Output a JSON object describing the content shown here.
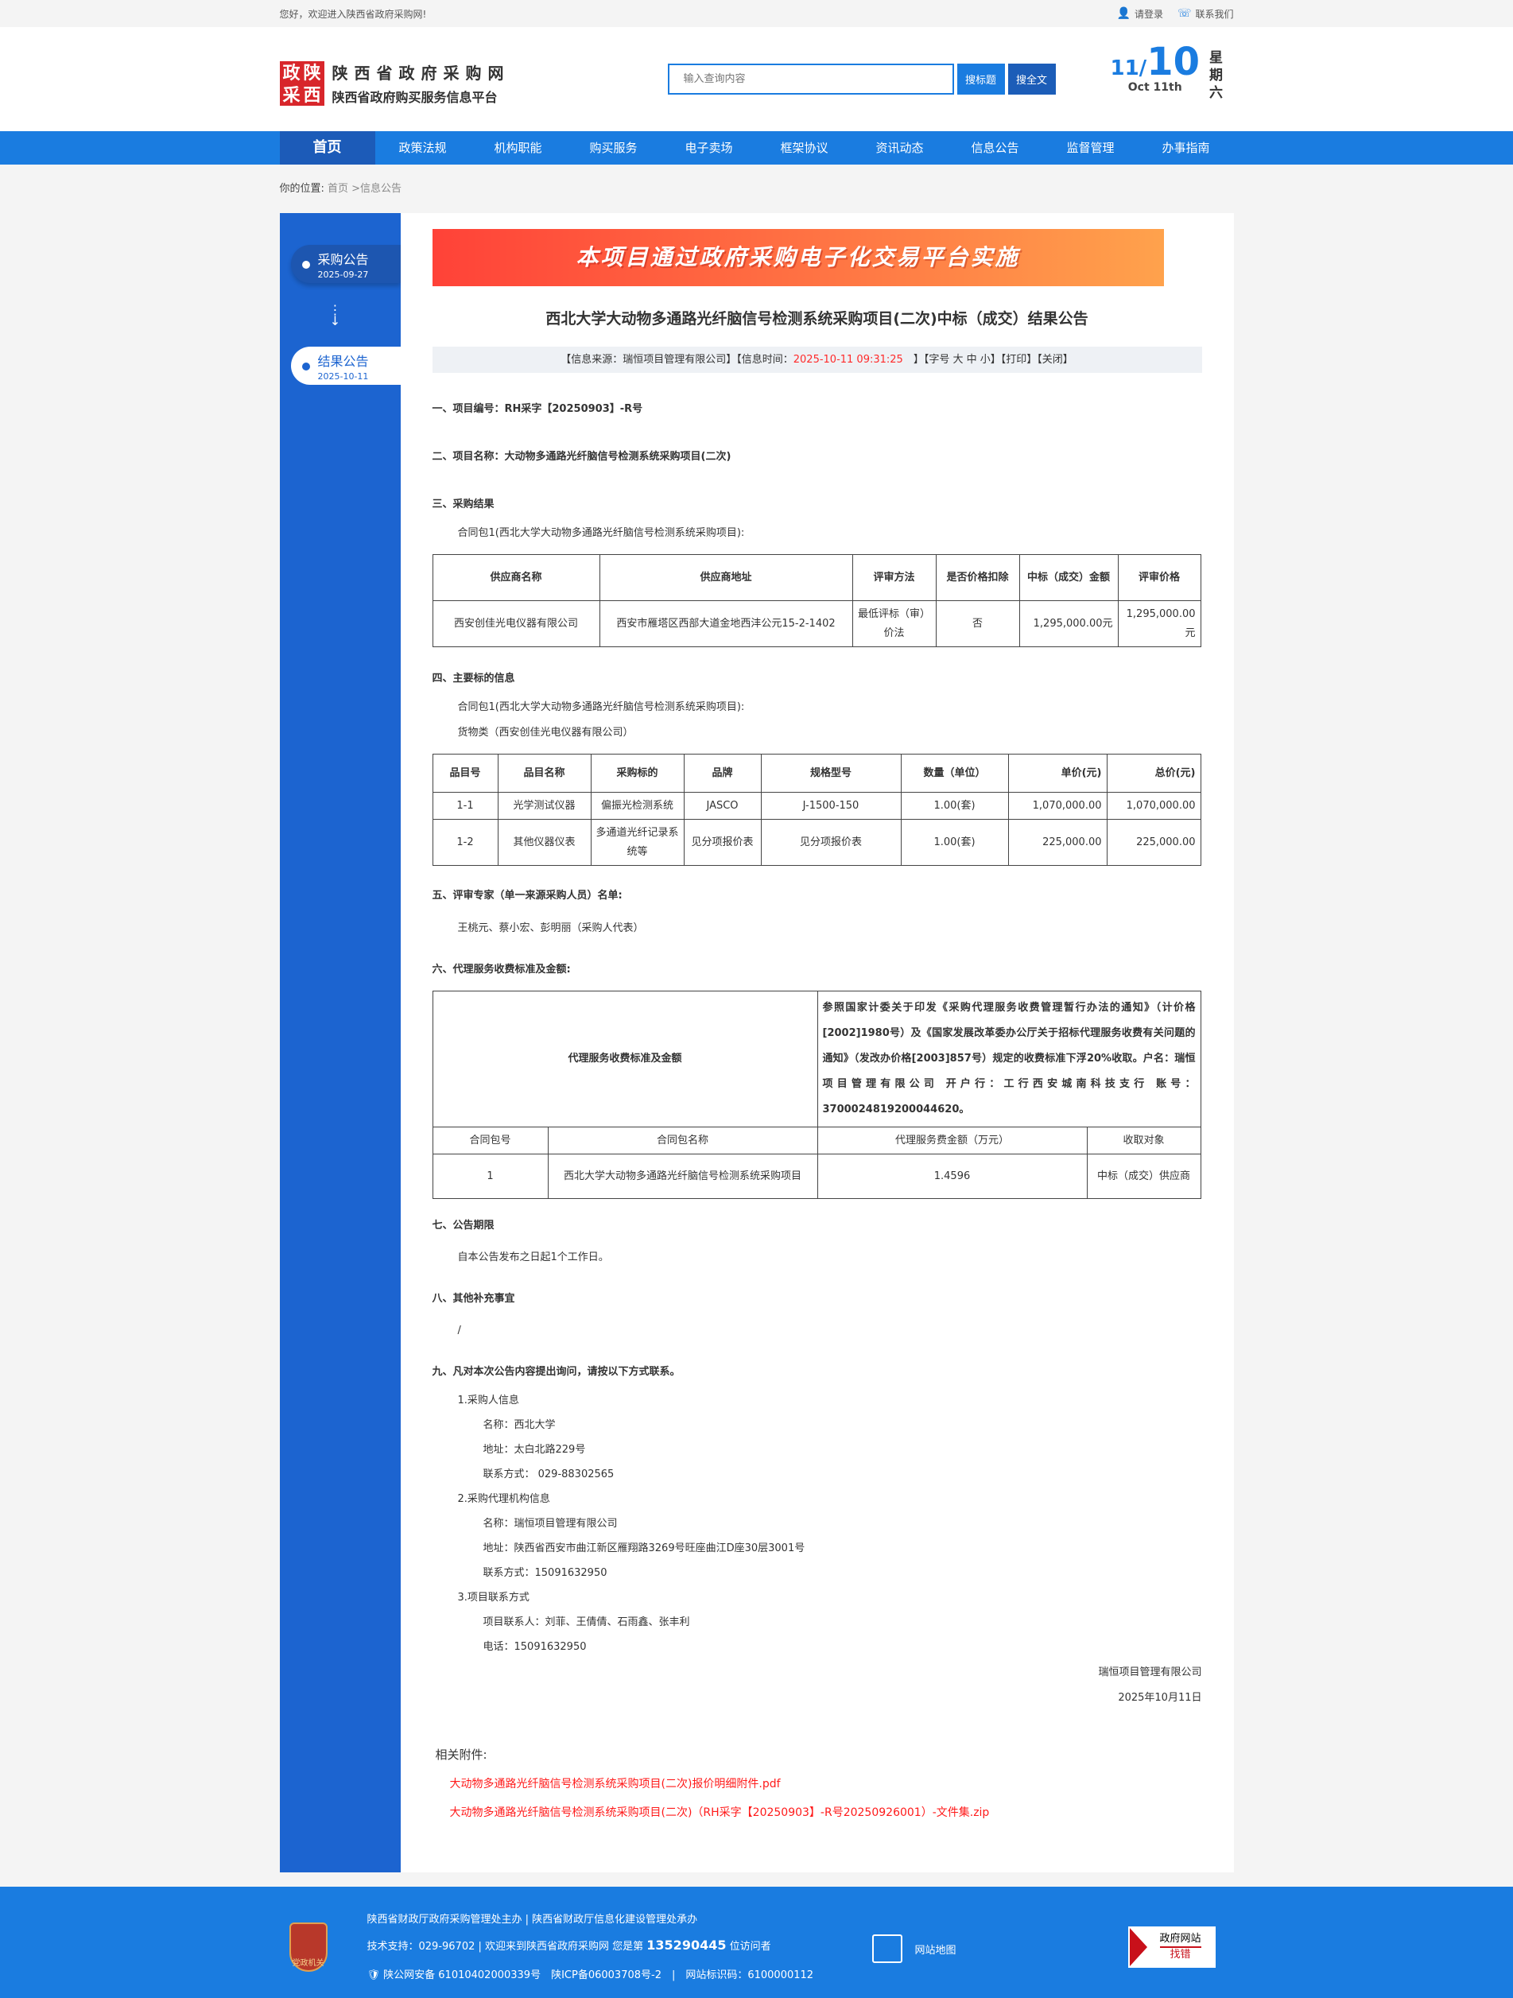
{
  "topbar": {
    "welcome": "您好，欢迎进入陕西省政府采购网!",
    "login": "请登录",
    "contact": "联系我们"
  },
  "header": {
    "seal": [
      "政",
      "陕",
      "采",
      "西"
    ],
    "title": "陕西省政府采购网",
    "subtitle": "陕西省政府购买服务信息平台",
    "search_placeholder": "输入查询内容",
    "search_title": "搜标题",
    "search_full": "搜全文",
    "date_month": "11/",
    "date_day": "10",
    "date_en": "Oct 11th",
    "weekday": "星期六"
  },
  "nav": [
    "首页",
    "政策法规",
    "机构职能",
    "购买服务",
    "电子卖场",
    "框架协议",
    "资讯动态",
    "信息公告",
    "监督管理",
    "办事指南"
  ],
  "breadcrumb": {
    "label": "你的位置:",
    "path": "首页 >信息公告"
  },
  "sidebar": {
    "steps": [
      {
        "label": "采购公告",
        "date": "2025-09-27"
      },
      {
        "label": "结果公告",
        "date": "2025-10-11"
      }
    ]
  },
  "banner": "本项目通过政府采购电子化交易平台实施",
  "title": "西北大学大动物多通路光纤脑信号检测系统采购项目(二次)中标（成交）结果公告",
  "info": {
    "source": "【信息来源：瑞恒项目管理有限公司】【信息时间：",
    "time": "2025-10-11 09:31:25",
    "rest": "】【字号 大 中 小】【打印】【关闭】"
  },
  "s1": "一、项目编号：RH采字【20250903】-R号",
  "s2": "二、项目名称：大动物多通路光纤脑信号检测系统采购项目(二次)",
  "s3": "三、采购结果",
  "pkg": "合同包1(西北大学大动物多通路光纤脑信号检测系统采购项目):",
  "t1": {
    "headers": [
      "供应商名称",
      "供应商地址",
      "评审方法",
      "是否价格扣除",
      "中标（成交）金额",
      "评审价格"
    ],
    "row": [
      "西安创佳光电仪器有限公司",
      "西安市雁塔区西部大道金地西沣公元15-2-1402",
      "最低评标（审）价法",
      "否",
      "1,295,000.00元",
      "1,295,000.00元"
    ]
  },
  "s4": "四、主要标的信息",
  "goods": "货物类（西安创佳光电仪器有限公司）",
  "t2": {
    "headers": [
      "品目号",
      "品目名称",
      "采购标的",
      "品牌",
      "规格型号",
      "数量（单位）",
      "单价(元)",
      "总价(元)"
    ],
    "rows": [
      [
        "1-1",
        "光学测试仪器",
        "偏振光检测系统",
        "JASCO",
        "J-1500-150",
        "1.00(套)",
        "1,070,000.00",
        "1,070,000.00"
      ],
      [
        "1-2",
        "其他仪器仪表",
        "多通道光纤记录系统等",
        "见分项报价表",
        "见分项报价表",
        "1.00(套)",
        "225,000.00",
        "225,000.00"
      ]
    ]
  },
  "s5": "五、评审专家（单一来源采购人员）名单:",
  "experts": "王桃元、蔡小宏、彭明丽（采购人代表）",
  "s6": "六、代理服务收费标准及金额:",
  "t3": {
    "label": "代理服务收费标准及金额",
    "desc": "参照国家计委关于印发《采购代理服务收费管理暂行办法的通知》（计价格[2002]1980号）及《国家发展改革委办公厅关于招标代理服务收费有关问题的通知》（发改办价格[2003]857号）规定的收费标准下浮20%收取。户名：瑞恒项目管理有限公司 开户行：工行西安城南科技支行 账号：3700024819200044620。",
    "headers": [
      "合同包号",
      "合同包名称",
      "代理服务费金额（万元）",
      "收取对象"
    ],
    "row": [
      "1",
      "西北大学大动物多通路光纤脑信号检测系统采购项目",
      "1.4596",
      "中标（成交）供应商"
    ]
  },
  "s7": "七、公告期限",
  "period": "自本公告发布之日起1个工作日。",
  "s8": "八、其他补充事宜",
  "other": "/",
  "s9": "九、凡对本次公告内容提出询问，请按以下方式联系。",
  "contacts": {
    "c1": "1.采购人信息",
    "c1n": "名称：西北大学",
    "c1a": "地址：太白北路229号",
    "c1p": "联系方式： 029-88302565",
    "c2": "2.采购代理机构信息",
    "c2n": "名称：瑞恒项目管理有限公司",
    "c2a": "地址：陕西省西安市曲江新区雁翔路3269号旺座曲江D座30层3001号",
    "c2p": "联系方式：15091632950",
    "c3": "3.项目联系方式",
    "c3n": "项目联系人：刘菲、王倩倩、石雨鑫、张丰利",
    "c3p": "电话：15091632950"
  },
  "sign": {
    "org": "瑞恒项目管理有限公司",
    "date": "2025年10月11日"
  },
  "attachments": {
    "label": "相关附件:",
    "files": [
      "大动物多通路光纤脑信号检测系统采购项目(二次)报价明细附件.pdf",
      "大动物多通路光纤脑信号检测系统采购项目(二次)（RH采字【20250903】-R号20250926001）-文件集.zip"
    ]
  },
  "footer": {
    "badge": "党政机关",
    "l1": "陕西省财政厅政府采购管理处主办 | 陕西省财政厅信息化建设管理处承办",
    "l2a": "技术支持：029-96702 | 欢迎来到陕西省政府采购网 您是第",
    "visitors": "135290445",
    "l2b": "位访问者",
    "l3": "陕公网安备 61010402000339号　陕ICP备06003708号-2　|　网站标识码：6100000112",
    "sitemap": "网站地图",
    "err1": "政府网站",
    "err2": "找错"
  },
  "colors": {
    "primary": "#1a7ce0",
    "sidebar": "#1c64d0",
    "link": "#ff1a1a"
  }
}
